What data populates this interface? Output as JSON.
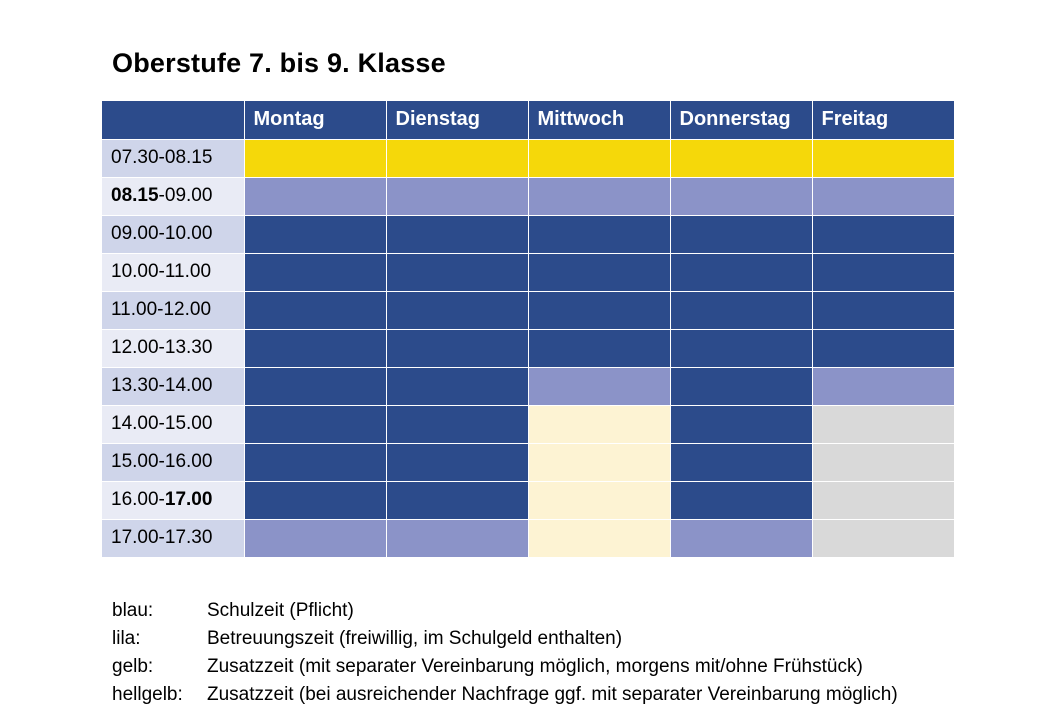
{
  "title": "Oberstufe 7. bis 9. Klasse",
  "colors": {
    "blau": "#2c4b8b",
    "lila": "#8b93c8",
    "gelb": "#f5d80a",
    "hellgelb": "#fdf3d3",
    "grau": "#d9d9d9",
    "time_odd": "#cfd5ea",
    "time_even": "#e9ebf5"
  },
  "schedule": {
    "corner": "",
    "days": [
      "Montag",
      "Dienstag",
      "Mittwoch",
      "Donnerstag",
      "Freitag"
    ],
    "rows": [
      {
        "time_parts": [
          {
            "t": "07.30-08.15",
            "bold": false
          }
        ],
        "cells": [
          "gelb",
          "gelb",
          "gelb",
          "gelb",
          "gelb"
        ]
      },
      {
        "time_parts": [
          {
            "t": "08.15",
            "bold": true
          },
          {
            "t": "-09.00",
            "bold": false
          }
        ],
        "cells": [
          "lila",
          "lila",
          "lila",
          "lila",
          "lila"
        ]
      },
      {
        "time_parts": [
          {
            "t": "09.00-10.00",
            "bold": false
          }
        ],
        "cells": [
          "blau",
          "blau",
          "blau",
          "blau",
          "blau"
        ]
      },
      {
        "time_parts": [
          {
            "t": "10.00-11.00",
            "bold": false
          }
        ],
        "cells": [
          "blau",
          "blau",
          "blau",
          "blau",
          "blau"
        ]
      },
      {
        "time_parts": [
          {
            "t": "11.00-12.00",
            "bold": false
          }
        ],
        "cells": [
          "blau",
          "blau",
          "blau",
          "blau",
          "blau"
        ]
      },
      {
        "time_parts": [
          {
            "t": "12.00-13.30",
            "bold": false
          }
        ],
        "cells": [
          "blau",
          "blau",
          "blau",
          "blau",
          "blau"
        ]
      },
      {
        "time_parts": [
          {
            "t": "13.30-14.00",
            "bold": false
          }
        ],
        "cells": [
          "blau",
          "blau",
          "lila",
          "blau",
          "lila"
        ]
      },
      {
        "time_parts": [
          {
            "t": "14.00-15.00",
            "bold": false
          }
        ],
        "cells": [
          "blau",
          "blau",
          "hellgelb",
          "blau",
          "grau"
        ]
      },
      {
        "time_parts": [
          {
            "t": "15.00-16.00",
            "bold": false
          }
        ],
        "cells": [
          "blau",
          "blau",
          "hellgelb",
          "blau",
          "grau"
        ]
      },
      {
        "time_parts": [
          {
            "t": "16.00-",
            "bold": false
          },
          {
            "t": "17.00",
            "bold": true
          }
        ],
        "cells": [
          "blau",
          "blau",
          "hellgelb",
          "blau",
          "grau"
        ]
      },
      {
        "time_parts": [
          {
            "t": "17.00-17.30",
            "bold": false
          }
        ],
        "cells": [
          "lila",
          "lila",
          "hellgelb",
          "lila",
          "grau"
        ]
      }
    ]
  },
  "legend": [
    {
      "key": "blau:",
      "text": "Schulzeit (Pflicht)"
    },
    {
      "key": "lila:",
      "text": "Betreuungszeit (freiwillig, im Schulgeld enthalten)"
    },
    {
      "key": "gelb:",
      "text": "Zusatzzeit (mit separater Vereinbarung möglich, morgens mit/ohne Frühstück)"
    },
    {
      "key": "hellgelb:",
      "text": "Zusatzzeit (bei ausreichender Nachfrage ggf. mit separater Vereinbarung möglich)"
    }
  ]
}
